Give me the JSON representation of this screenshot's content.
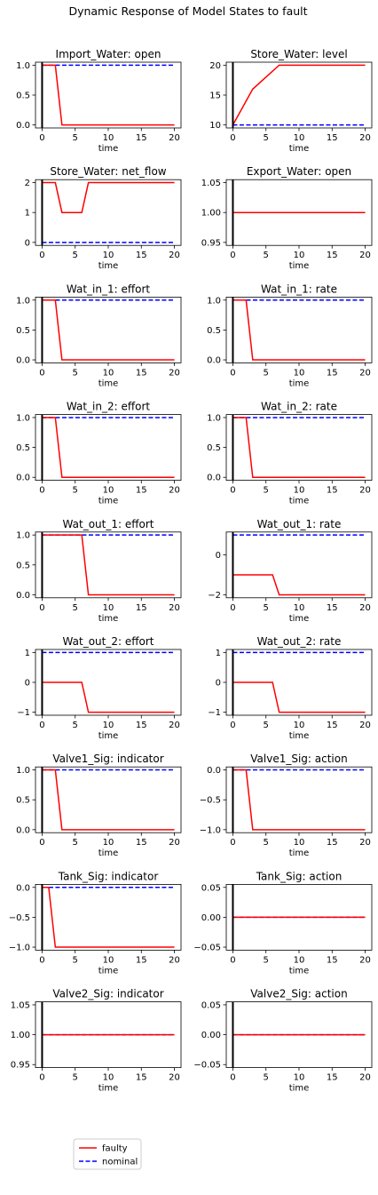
{
  "figure": {
    "suptitle": "Dynamic Response of Model States to fault",
    "legend": {
      "placement": "bottom-left",
      "entries": [
        {
          "label": "faulty",
          "color": "#ff0000",
          "style": "solid"
        },
        {
          "label": "nominal",
          "color": "#0000ff",
          "style": "dashed"
        }
      ]
    },
    "fault_marker": {
      "x": 0,
      "color": "#000000"
    }
  },
  "chart_data": [
    {
      "type": "line",
      "title": "Import_Water: open",
      "xlabel": "time",
      "ylabel": "",
      "xlim": [
        -1,
        21
      ],
      "ylim": [
        -0.05,
        1.05
      ],
      "xticks": [
        0,
        5,
        10,
        15,
        20
      ],
      "yticks": [
        0.0,
        0.5,
        1.0
      ],
      "ytick_labels": [
        "0.0",
        "0.5",
        "1.0"
      ],
      "series": [
        {
          "name": "faulty",
          "x": [
            0,
            2,
            3,
            20
          ],
          "y": [
            1,
            1,
            0,
            0
          ]
        },
        {
          "name": "nominal",
          "x": [
            0,
            20
          ],
          "y": [
            1,
            1
          ]
        }
      ]
    },
    {
      "type": "line",
      "title": "Store_Water: level",
      "xlabel": "time",
      "ylabel": "",
      "xlim": [
        -1,
        21
      ],
      "ylim": [
        9.5,
        20.5
      ],
      "xticks": [
        0,
        5,
        10,
        15,
        20
      ],
      "yticks": [
        10,
        15,
        20
      ],
      "ytick_labels": [
        "10",
        "15",
        "20"
      ],
      "series": [
        {
          "name": "faulty",
          "x": [
            0,
            3,
            7,
            20
          ],
          "y": [
            10,
            16,
            20,
            20
          ]
        },
        {
          "name": "nominal",
          "x": [
            0,
            20
          ],
          "y": [
            10,
            10
          ]
        }
      ]
    },
    {
      "type": "line",
      "title": "Store_Water: net_flow",
      "xlabel": "time",
      "ylabel": "",
      "xlim": [
        -1,
        21
      ],
      "ylim": [
        -0.1,
        2.1
      ],
      "xticks": [
        0,
        5,
        10,
        15,
        20
      ],
      "yticks": [
        0,
        1,
        2
      ],
      "ytick_labels": [
        "0",
        "1",
        "2"
      ],
      "series": [
        {
          "name": "faulty",
          "x": [
            0,
            2,
            3,
            6,
            7,
            20
          ],
          "y": [
            2,
            2,
            1,
            1,
            2,
            2
          ]
        },
        {
          "name": "nominal",
          "x": [
            0,
            20
          ],
          "y": [
            0,
            0
          ]
        }
      ]
    },
    {
      "type": "line",
      "title": "Export_Water: open",
      "xlabel": "time",
      "ylabel": "",
      "xlim": [
        -1,
        21
      ],
      "ylim": [
        0.945,
        1.055
      ],
      "xticks": [
        0,
        5,
        10,
        15,
        20
      ],
      "yticks": [
        0.95,
        1.0,
        1.05
      ],
      "ytick_labels": [
        "0.95",
        "1.00",
        "1.05"
      ],
      "series": [
        {
          "name": "faulty",
          "x": [
            0,
            20
          ],
          "y": [
            1,
            1
          ]
        },
        {
          "name": "nominal",
          "x": [
            0,
            20
          ],
          "y": [
            1,
            1
          ]
        }
      ]
    },
    {
      "type": "line",
      "title": "Wat_in_1: effort",
      "xlabel": "time",
      "ylabel": "",
      "xlim": [
        -1,
        21
      ],
      "ylim": [
        -0.05,
        1.05
      ],
      "xticks": [
        0,
        5,
        10,
        15,
        20
      ],
      "yticks": [
        0.0,
        0.5,
        1.0
      ],
      "ytick_labels": [
        "0.0",
        "0.5",
        "1.0"
      ],
      "series": [
        {
          "name": "faulty",
          "x": [
            0,
            2,
            3,
            20
          ],
          "y": [
            1,
            1,
            0,
            0
          ]
        },
        {
          "name": "nominal",
          "x": [
            0,
            20
          ],
          "y": [
            1,
            1
          ]
        }
      ]
    },
    {
      "type": "line",
      "title": "Wat_in_1: rate",
      "xlabel": "time",
      "ylabel": "",
      "xlim": [
        -1,
        21
      ],
      "ylim": [
        -0.05,
        1.05
      ],
      "xticks": [
        0,
        5,
        10,
        15,
        20
      ],
      "yticks": [
        0.0,
        0.5,
        1.0
      ],
      "ytick_labels": [
        "0.0",
        "0.5",
        "1.0"
      ],
      "series": [
        {
          "name": "faulty",
          "x": [
            0,
            2,
            3,
            20
          ],
          "y": [
            1,
            1,
            0,
            0
          ]
        },
        {
          "name": "nominal",
          "x": [
            0,
            20
          ],
          "y": [
            1,
            1
          ]
        }
      ]
    },
    {
      "type": "line",
      "title": "Wat_in_2: effort",
      "xlabel": "time",
      "ylabel": "",
      "xlim": [
        -1,
        21
      ],
      "ylim": [
        -0.05,
        1.05
      ],
      "xticks": [
        0,
        5,
        10,
        15,
        20
      ],
      "yticks": [
        0.0,
        0.5,
        1.0
      ],
      "ytick_labels": [
        "0.0",
        "0.5",
        "1.0"
      ],
      "series": [
        {
          "name": "faulty",
          "x": [
            0,
            2,
            3,
            20
          ],
          "y": [
            1,
            1,
            0,
            0
          ]
        },
        {
          "name": "nominal",
          "x": [
            0,
            20
          ],
          "y": [
            1,
            1
          ]
        }
      ]
    },
    {
      "type": "line",
      "title": "Wat_in_2: rate",
      "xlabel": "time",
      "ylabel": "",
      "xlim": [
        -1,
        21
      ],
      "ylim": [
        -0.05,
        1.05
      ],
      "xticks": [
        0,
        5,
        10,
        15,
        20
      ],
      "yticks": [
        0.0,
        0.5,
        1.0
      ],
      "ytick_labels": [
        "0.0",
        "0.5",
        "1.0"
      ],
      "series": [
        {
          "name": "faulty",
          "x": [
            0,
            2,
            3,
            20
          ],
          "y": [
            1,
            1,
            0,
            0
          ]
        },
        {
          "name": "nominal",
          "x": [
            0,
            20
          ],
          "y": [
            1,
            1
          ]
        }
      ]
    },
    {
      "type": "line",
      "title": "Wat_out_1: effort",
      "xlabel": "time",
      "ylabel": "",
      "xlim": [
        -1,
        21
      ],
      "ylim": [
        -0.05,
        1.05
      ],
      "xticks": [
        0,
        5,
        10,
        15,
        20
      ],
      "yticks": [
        0.0,
        0.5,
        1.0
      ],
      "ytick_labels": [
        "0.0",
        "0.5",
        "1.0"
      ],
      "series": [
        {
          "name": "faulty",
          "x": [
            0,
            6,
            7,
            20
          ],
          "y": [
            1,
            1,
            0,
            0
          ]
        },
        {
          "name": "nominal",
          "x": [
            0,
            20
          ],
          "y": [
            1,
            1
          ]
        }
      ]
    },
    {
      "type": "line",
      "title": "Wat_out_1: rate",
      "xlabel": "time",
      "ylabel": "",
      "xlim": [
        -1,
        21
      ],
      "ylim": [
        -2.15,
        1.15
      ],
      "xticks": [
        0,
        5,
        10,
        15,
        20
      ],
      "yticks": [
        -2,
        0
      ],
      "ytick_labels": [
        "−2",
        "0"
      ],
      "series": [
        {
          "name": "faulty",
          "x": [
            0,
            6,
            7,
            20
          ],
          "y": [
            -1,
            -1,
            -2,
            -2
          ]
        },
        {
          "name": "nominal",
          "x": [
            0,
            20
          ],
          "y": [
            1,
            1
          ]
        }
      ]
    },
    {
      "type": "line",
      "title": "Wat_out_2: effort",
      "xlabel": "time",
      "ylabel": "",
      "xlim": [
        -1,
        21
      ],
      "ylim": [
        -1.1,
        1.1
      ],
      "xticks": [
        0,
        5,
        10,
        15,
        20
      ],
      "yticks": [
        -1,
        0,
        1
      ],
      "ytick_labels": [
        "−1",
        "0",
        "1"
      ],
      "series": [
        {
          "name": "faulty",
          "x": [
            0,
            6,
            7,
            20
          ],
          "y": [
            0,
            0,
            -1,
            -1
          ]
        },
        {
          "name": "nominal",
          "x": [
            0,
            20
          ],
          "y": [
            1,
            1
          ]
        }
      ]
    },
    {
      "type": "line",
      "title": "Wat_out_2: rate",
      "xlabel": "time",
      "ylabel": "",
      "xlim": [
        -1,
        21
      ],
      "ylim": [
        -1.1,
        1.1
      ],
      "xticks": [
        0,
        5,
        10,
        15,
        20
      ],
      "yticks": [
        -1,
        0,
        1
      ],
      "ytick_labels": [
        "−1",
        "0",
        "1"
      ],
      "series": [
        {
          "name": "faulty",
          "x": [
            0,
            6,
            7,
            20
          ],
          "y": [
            0,
            0,
            -1,
            -1
          ]
        },
        {
          "name": "nominal",
          "x": [
            0,
            20
          ],
          "y": [
            1,
            1
          ]
        }
      ]
    },
    {
      "type": "line",
      "title": "Valve1_Sig: indicator",
      "xlabel": "time",
      "ylabel": "",
      "xlim": [
        -1,
        21
      ],
      "ylim": [
        -0.05,
        1.05
      ],
      "xticks": [
        0,
        5,
        10,
        15,
        20
      ],
      "yticks": [
        0.0,
        0.5,
        1.0
      ],
      "ytick_labels": [
        "0.0",
        "0.5",
        "1.0"
      ],
      "series": [
        {
          "name": "faulty",
          "x": [
            0,
            2,
            3,
            20
          ],
          "y": [
            1,
            1,
            0,
            0
          ]
        },
        {
          "name": "nominal",
          "x": [
            0,
            20
          ],
          "y": [
            1,
            1
          ]
        }
      ]
    },
    {
      "type": "line",
      "title": "Valve1_Sig: action",
      "xlabel": "time",
      "ylabel": "",
      "xlim": [
        -1,
        21
      ],
      "ylim": [
        -1.05,
        0.05
      ],
      "xticks": [
        0,
        5,
        10,
        15,
        20
      ],
      "yticks": [
        -1.0,
        -0.5,
        0.0
      ],
      "ytick_labels": [
        "−1.0",
        "−0.5",
        "0.0"
      ],
      "series": [
        {
          "name": "faulty",
          "x": [
            0,
            2,
            3,
            20
          ],
          "y": [
            0,
            0,
            -1,
            -1
          ]
        },
        {
          "name": "nominal",
          "x": [
            0,
            20
          ],
          "y": [
            0,
            0
          ]
        }
      ]
    },
    {
      "type": "line",
      "title": "Tank_Sig: indicator",
      "xlabel": "time",
      "ylabel": "",
      "xlim": [
        -1,
        21
      ],
      "ylim": [
        -1.05,
        0.05
      ],
      "xticks": [
        0,
        5,
        10,
        15,
        20
      ],
      "yticks": [
        -1.0,
        -0.5,
        0.0
      ],
      "ytick_labels": [
        "−1.0",
        "−0.5",
        "0.0"
      ],
      "series": [
        {
          "name": "faulty",
          "x": [
            0,
            1,
            2,
            20
          ],
          "y": [
            0,
            0,
            -1,
            -1
          ]
        },
        {
          "name": "nominal",
          "x": [
            0,
            20
          ],
          "y": [
            0,
            0
          ]
        }
      ]
    },
    {
      "type": "line",
      "title": "Tank_Sig: action",
      "xlabel": "time",
      "ylabel": "",
      "xlim": [
        -1,
        21
      ],
      "ylim": [
        -0.055,
        0.055
      ],
      "xticks": [
        0,
        5,
        10,
        15,
        20
      ],
      "yticks": [
        -0.05,
        0.0,
        0.05
      ],
      "ytick_labels": [
        "−0.05",
        "0.00",
        "0.05"
      ],
      "series": [
        {
          "name": "faulty",
          "x": [
            0,
            20
          ],
          "y": [
            0,
            0
          ]
        },
        {
          "name": "nominal",
          "x": [
            0,
            20
          ],
          "y": [
            0,
            0
          ]
        }
      ]
    },
    {
      "type": "line",
      "title": "Valve2_Sig: indicator",
      "xlabel": "time",
      "ylabel": "",
      "xlim": [
        -1,
        21
      ],
      "ylim": [
        0.945,
        1.055
      ],
      "xticks": [
        0,
        5,
        10,
        15,
        20
      ],
      "yticks": [
        0.95,
        1.0,
        1.05
      ],
      "ytick_labels": [
        "0.95",
        "1.00",
        "1.05"
      ],
      "series": [
        {
          "name": "faulty",
          "x": [
            0,
            20
          ],
          "y": [
            1,
            1
          ]
        },
        {
          "name": "nominal",
          "x": [
            0,
            20
          ],
          "y": [
            1,
            1
          ]
        }
      ]
    },
    {
      "type": "line",
      "title": "Valve2_Sig: action",
      "xlabel": "time",
      "ylabel": "",
      "xlim": [
        -1,
        21
      ],
      "ylim": [
        -0.055,
        0.055
      ],
      "xticks": [
        0,
        5,
        10,
        15,
        20
      ],
      "yticks": [
        -0.05,
        0.0,
        0.05
      ],
      "ytick_labels": [
        "−0.05",
        "0.00",
        "0.05"
      ],
      "series": [
        {
          "name": "faulty",
          "x": [
            0,
            20
          ],
          "y": [
            0,
            0
          ]
        },
        {
          "name": "nominal",
          "x": [
            0,
            20
          ],
          "y": [
            0,
            0
          ]
        }
      ]
    }
  ]
}
